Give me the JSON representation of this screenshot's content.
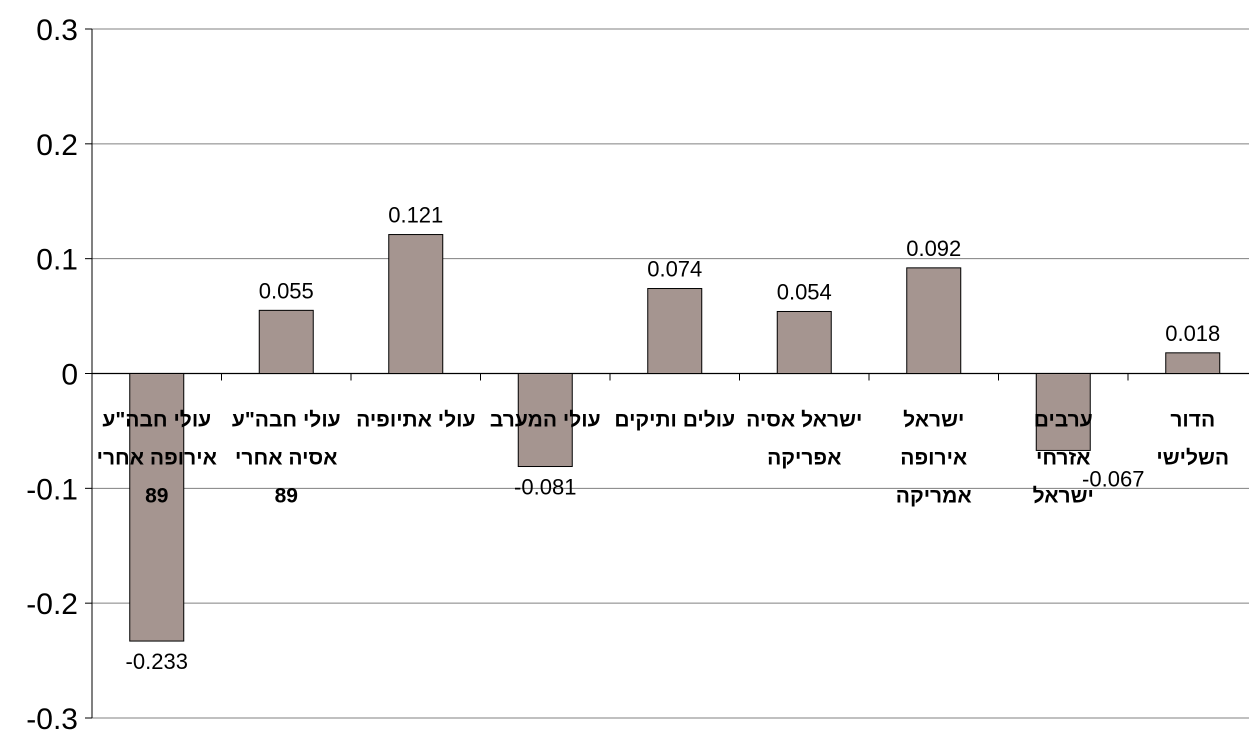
{
  "chart_data": {
    "type": "bar",
    "categories": [
      [
        "עולי חבה\"ע",
        "אירופה אחרי",
        "89"
      ],
      [
        "עולי חבה\"ע",
        "אסיה אחרי",
        "89"
      ],
      [
        "עולי אתיופיה"
      ],
      [
        "עולי המערב"
      ],
      [
        "עולים ותיקים"
      ],
      [
        "ישראל אסיה",
        "אפריקה"
      ],
      [
        "ישראל",
        "אירופה",
        "אמריקה"
      ],
      [
        "ערבים",
        "אזרחי",
        "ישראל"
      ],
      [
        "הדור",
        "השלישי"
      ]
    ],
    "values": [
      -0.233,
      0.055,
      0.121,
      -0.081,
      0.074,
      0.054,
      0.092,
      -0.067,
      0.018
    ],
    "value_labels": [
      "-0.233",
      "0.055",
      "0.121",
      "-0.081",
      "0.074",
      "0.054",
      "0.092",
      "-0.067",
      "0.018"
    ],
    "ylim": [
      -0.3,
      0.3
    ],
    "yticks": [
      -0.3,
      -0.2,
      -0.1,
      0,
      0.1,
      0.2,
      0.3
    ],
    "ytick_labels": [
      "-0.3",
      "-0.2",
      "-0.1",
      "0",
      "0.1",
      "0.2",
      "0.3"
    ],
    "grid": true,
    "bar_color": "#a59590",
    "bar_edge_color": "#000000",
    "grid_color": "#808080",
    "title": "",
    "xlabel": "",
    "ylabel": ""
  }
}
